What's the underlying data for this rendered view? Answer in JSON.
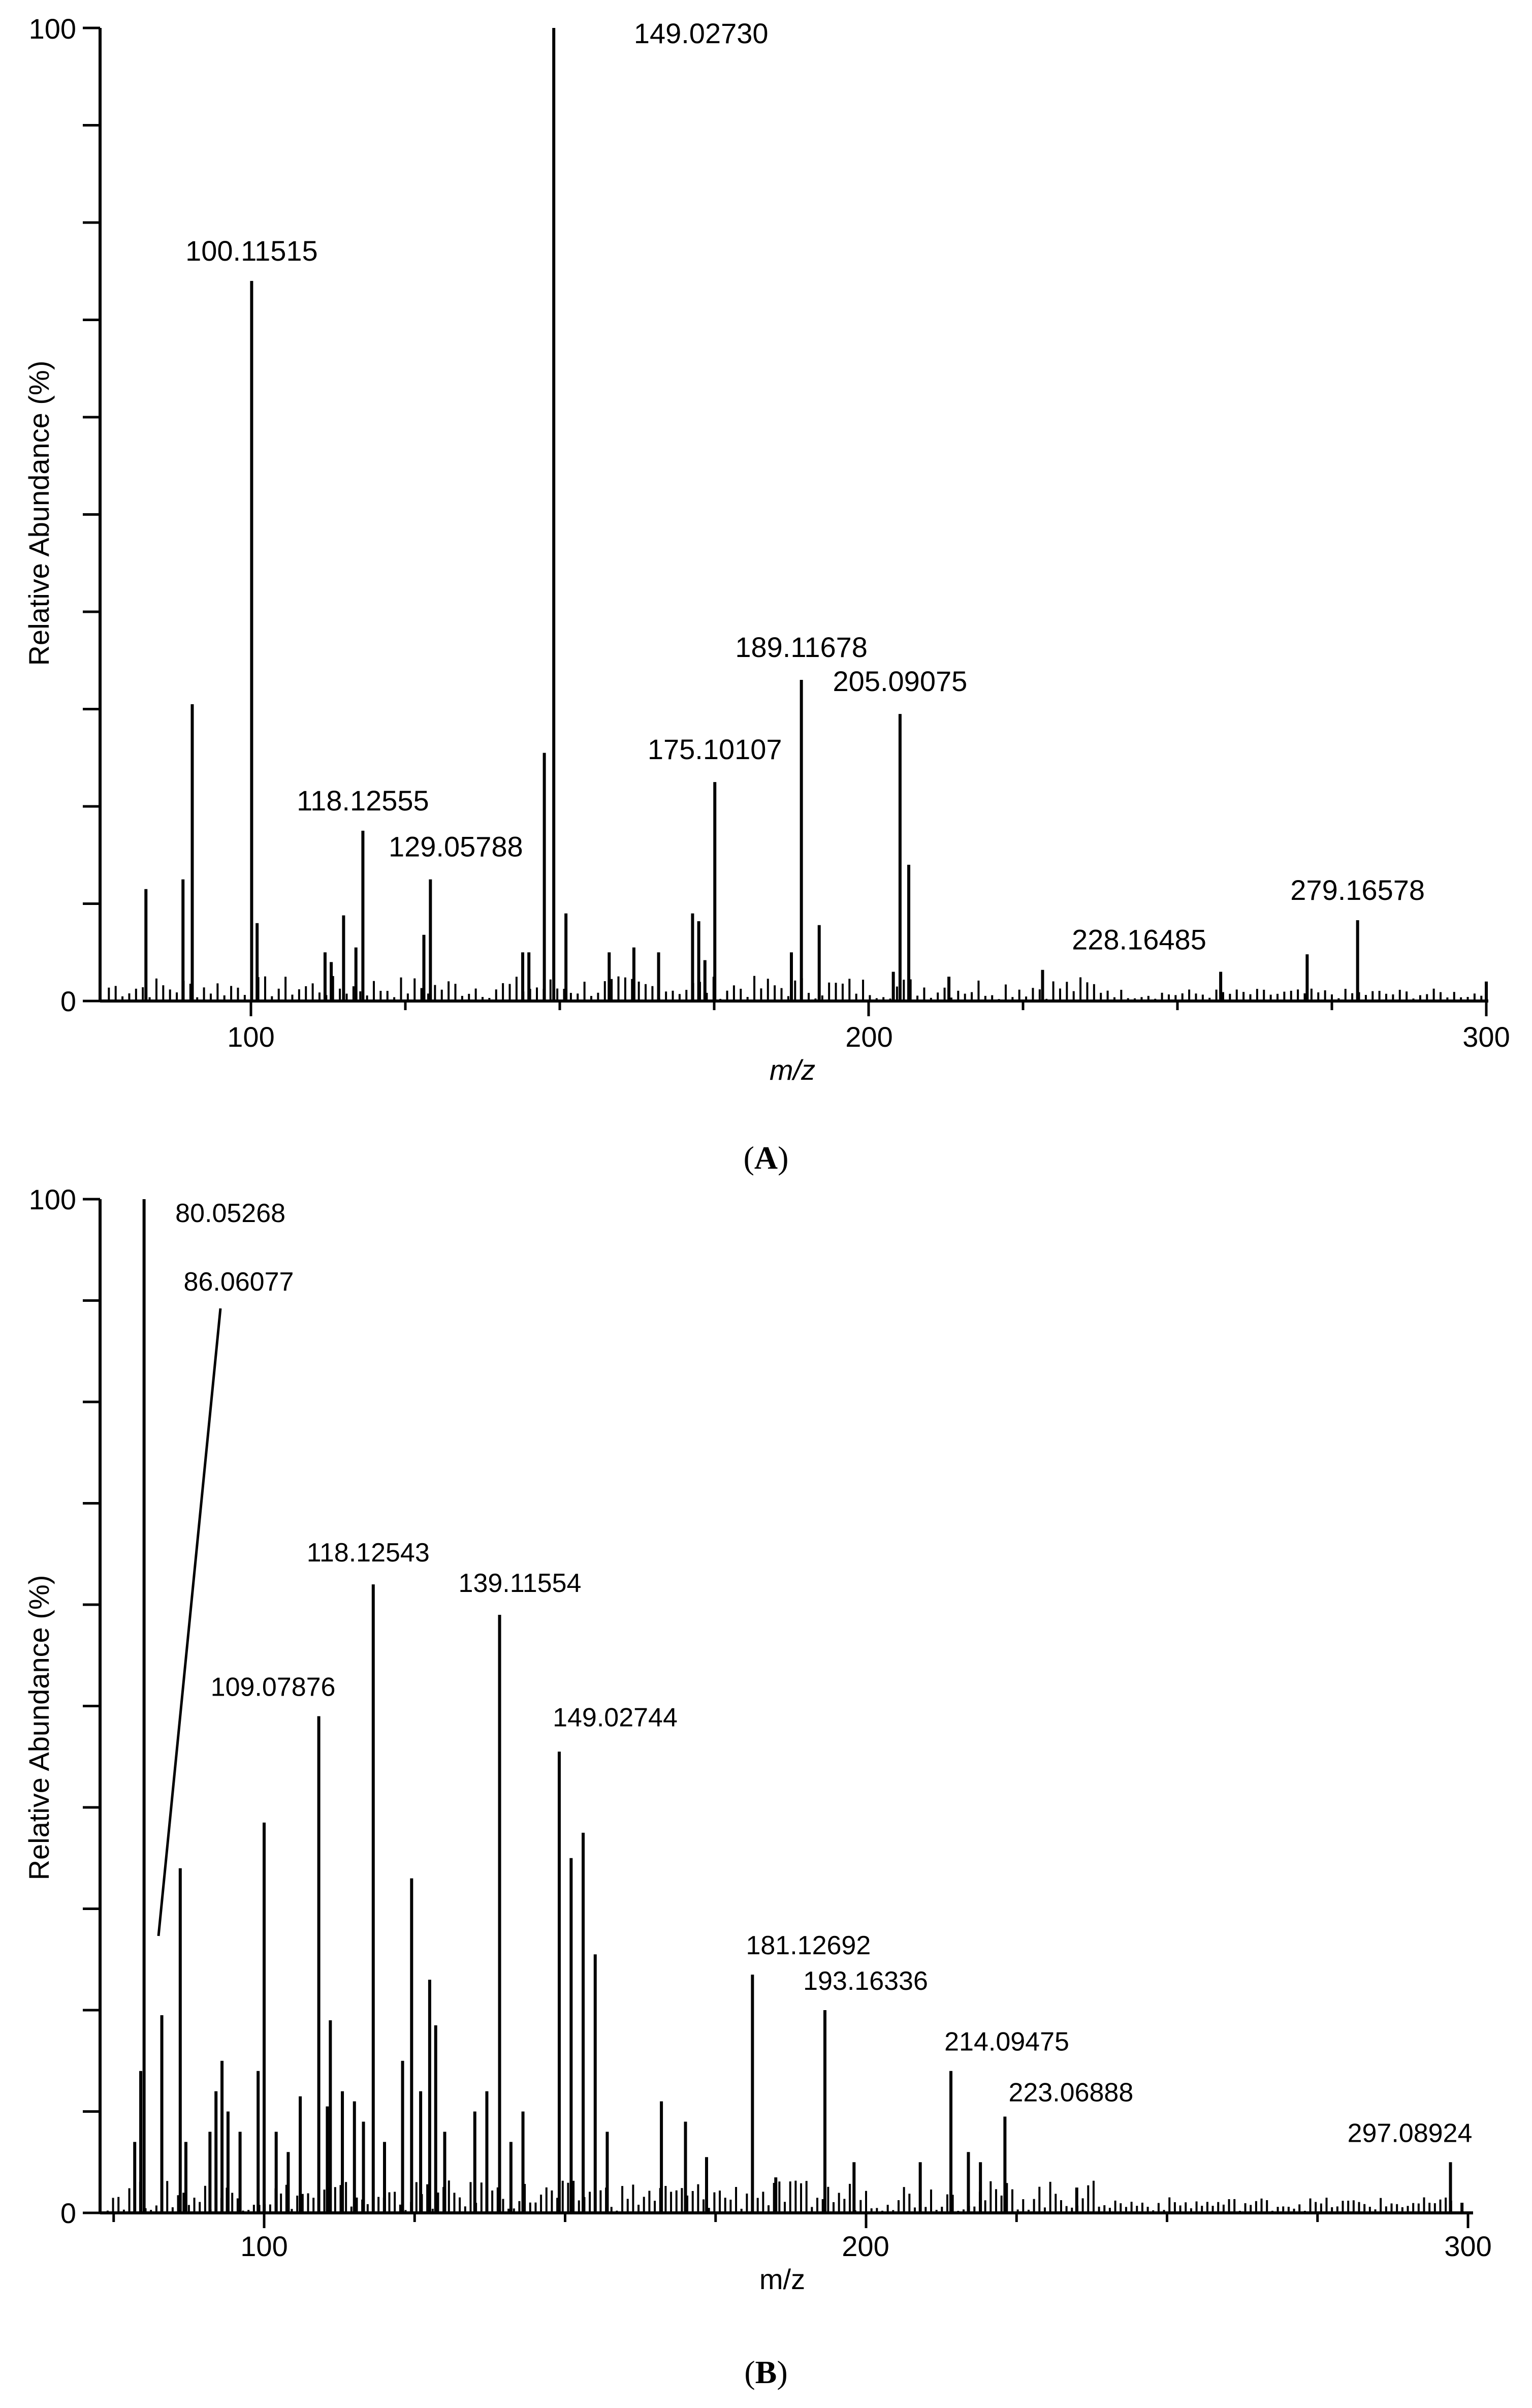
{
  "chart_data": [
    {
      "type": "bar",
      "panel_label": "A",
      "xlabel": "m/z",
      "ylabel": "Relative Abundance (%)",
      "xlim": [
        75,
        300
      ],
      "ylim": [
        0,
        100
      ],
      "x_ticks": [
        "100",
        "200",
        "300"
      ],
      "y_ticks": [
        "0",
        "100"
      ],
      "peaks": [
        {
          "x": 83,
          "y": 11.5
        },
        {
          "x": 89,
          "y": 12.5
        },
        {
          "x": 90.5,
          "y": 30.5
        },
        {
          "x": 100.11515,
          "y": 74,
          "label": "100.11515"
        },
        {
          "x": 101,
          "y": 8
        },
        {
          "x": 112,
          "y": 5
        },
        {
          "x": 113,
          "y": 4
        },
        {
          "x": 115,
          "y": 8.8
        },
        {
          "x": 117,
          "y": 5.5
        },
        {
          "x": 118.12555,
          "y": 17.5,
          "label": "118.12555"
        },
        {
          "x": 128,
          "y": 6.8
        },
        {
          "x": 129.05788,
          "y": 12.5,
          "label": "129.05788"
        },
        {
          "x": 144,
          "y": 5
        },
        {
          "x": 145,
          "y": 5
        },
        {
          "x": 147.5,
          "y": 25.5
        },
        {
          "x": 149.0273,
          "y": 100,
          "label": "149.02730"
        },
        {
          "x": 151,
          "y": 9
        },
        {
          "x": 158,
          "y": 5
        },
        {
          "x": 162,
          "y": 5.5
        },
        {
          "x": 166,
          "y": 5
        },
        {
          "x": 171.5,
          "y": 9
        },
        {
          "x": 172.5,
          "y": 8.2
        },
        {
          "x": 173.5,
          "y": 4.2
        },
        {
          "x": 175.10107,
          "y": 22.5,
          "label": "175.10107"
        },
        {
          "x": 187.5,
          "y": 5
        },
        {
          "x": 189.11678,
          "y": 33,
          "label": "189.11678"
        },
        {
          "x": 192,
          "y": 7.8
        },
        {
          "x": 204,
          "y": 3
        },
        {
          "x": 205.09075,
          "y": 29.5,
          "label": "205.09075"
        },
        {
          "x": 206.5,
          "y": 14
        },
        {
          "x": 213,
          "y": 2.5
        },
        {
          "x": 228.16485,
          "y": 3.2,
          "label": "228.16485"
        },
        {
          "x": 257,
          "y": 3
        },
        {
          "x": 271,
          "y": 4.8
        },
        {
          "x": 279.16578,
          "y": 8.3,
          "label": "279.16578"
        },
        {
          "x": 300,
          "y": 2
        }
      ]
    },
    {
      "type": "bar",
      "panel_label": "B",
      "xlabel": "m/z",
      "ylabel": "Relative Abundance (%)",
      "xlim": [
        72,
        300
      ],
      "ylim": [
        0,
        100
      ],
      "x_ticks": [
        "100",
        "200",
        "300"
      ],
      "y_ticks": [
        "0",
        "100"
      ],
      "peaks": [
        {
          "x": 78.5,
          "y": 7
        },
        {
          "x": 79.5,
          "y": 14
        },
        {
          "x": 80.05268,
          "y": 100,
          "label": "80.05268"
        },
        {
          "x": 83,
          "y": 19.5
        },
        {
          "x": 86.06077,
          "y": 34,
          "label": "86.06077"
        },
        {
          "x": 87,
          "y": 7
        },
        {
          "x": 91,
          "y": 8
        },
        {
          "x": 92,
          "y": 12
        },
        {
          "x": 93,
          "y": 15
        },
        {
          "x": 94,
          "y": 10
        },
        {
          "x": 96,
          "y": 8
        },
        {
          "x": 99,
          "y": 14
        },
        {
          "x": 100,
          "y": 38.5
        },
        {
          "x": 102,
          "y": 8
        },
        {
          "x": 104,
          "y": 6
        },
        {
          "x": 106,
          "y": 11.5
        },
        {
          "x": 109.07876,
          "y": 49,
          "label": "109.07876"
        },
        {
          "x": 110.5,
          "y": 10.5
        },
        {
          "x": 111,
          "y": 19
        },
        {
          "x": 113,
          "y": 12
        },
        {
          "x": 115,
          "y": 11
        },
        {
          "x": 116.5,
          "y": 9
        },
        {
          "x": 118.12543,
          "y": 62,
          "label": "118.12543"
        },
        {
          "x": 120,
          "y": 7
        },
        {
          "x": 123,
          "y": 15
        },
        {
          "x": 124.5,
          "y": 33
        },
        {
          "x": 126,
          "y": 12
        },
        {
          "x": 127.5,
          "y": 23
        },
        {
          "x": 128.5,
          "y": 18.5
        },
        {
          "x": 130,
          "y": 8
        },
        {
          "x": 135,
          "y": 10
        },
        {
          "x": 137,
          "y": 12
        },
        {
          "x": 139.11554,
          "y": 59,
          "label": "139.11554"
        },
        {
          "x": 141,
          "y": 7
        },
        {
          "x": 143,
          "y": 10
        },
        {
          "x": 149.02744,
          "y": 45.5,
          "label": "149.02744"
        },
        {
          "x": 151,
          "y": 35
        },
        {
          "x": 153,
          "y": 37.5
        },
        {
          "x": 155,
          "y": 25.5
        },
        {
          "x": 157,
          "y": 8
        },
        {
          "x": 166,
          "y": 11
        },
        {
          "x": 170,
          "y": 9
        },
        {
          "x": 173.5,
          "y": 5.5
        },
        {
          "x": 181.12692,
          "y": 23.5,
          "label": "181.12692"
        },
        {
          "x": 185,
          "y": 3.5
        },
        {
          "x": 193.16336,
          "y": 20,
          "label": "193.16336"
        },
        {
          "x": 198,
          "y": 5
        },
        {
          "x": 209,
          "y": 5
        },
        {
          "x": 214.09475,
          "y": 14,
          "label": "214.09475"
        },
        {
          "x": 217,
          "y": 6
        },
        {
          "x": 219,
          "y": 5
        },
        {
          "x": 223.06888,
          "y": 9.5,
          "label": "223.06888"
        },
        {
          "x": 235,
          "y": 2.5
        },
        {
          "x": 297.08924,
          "y": 5,
          "label": "297.08924"
        },
        {
          "x": 299,
          "y": 1
        }
      ]
    }
  ]
}
